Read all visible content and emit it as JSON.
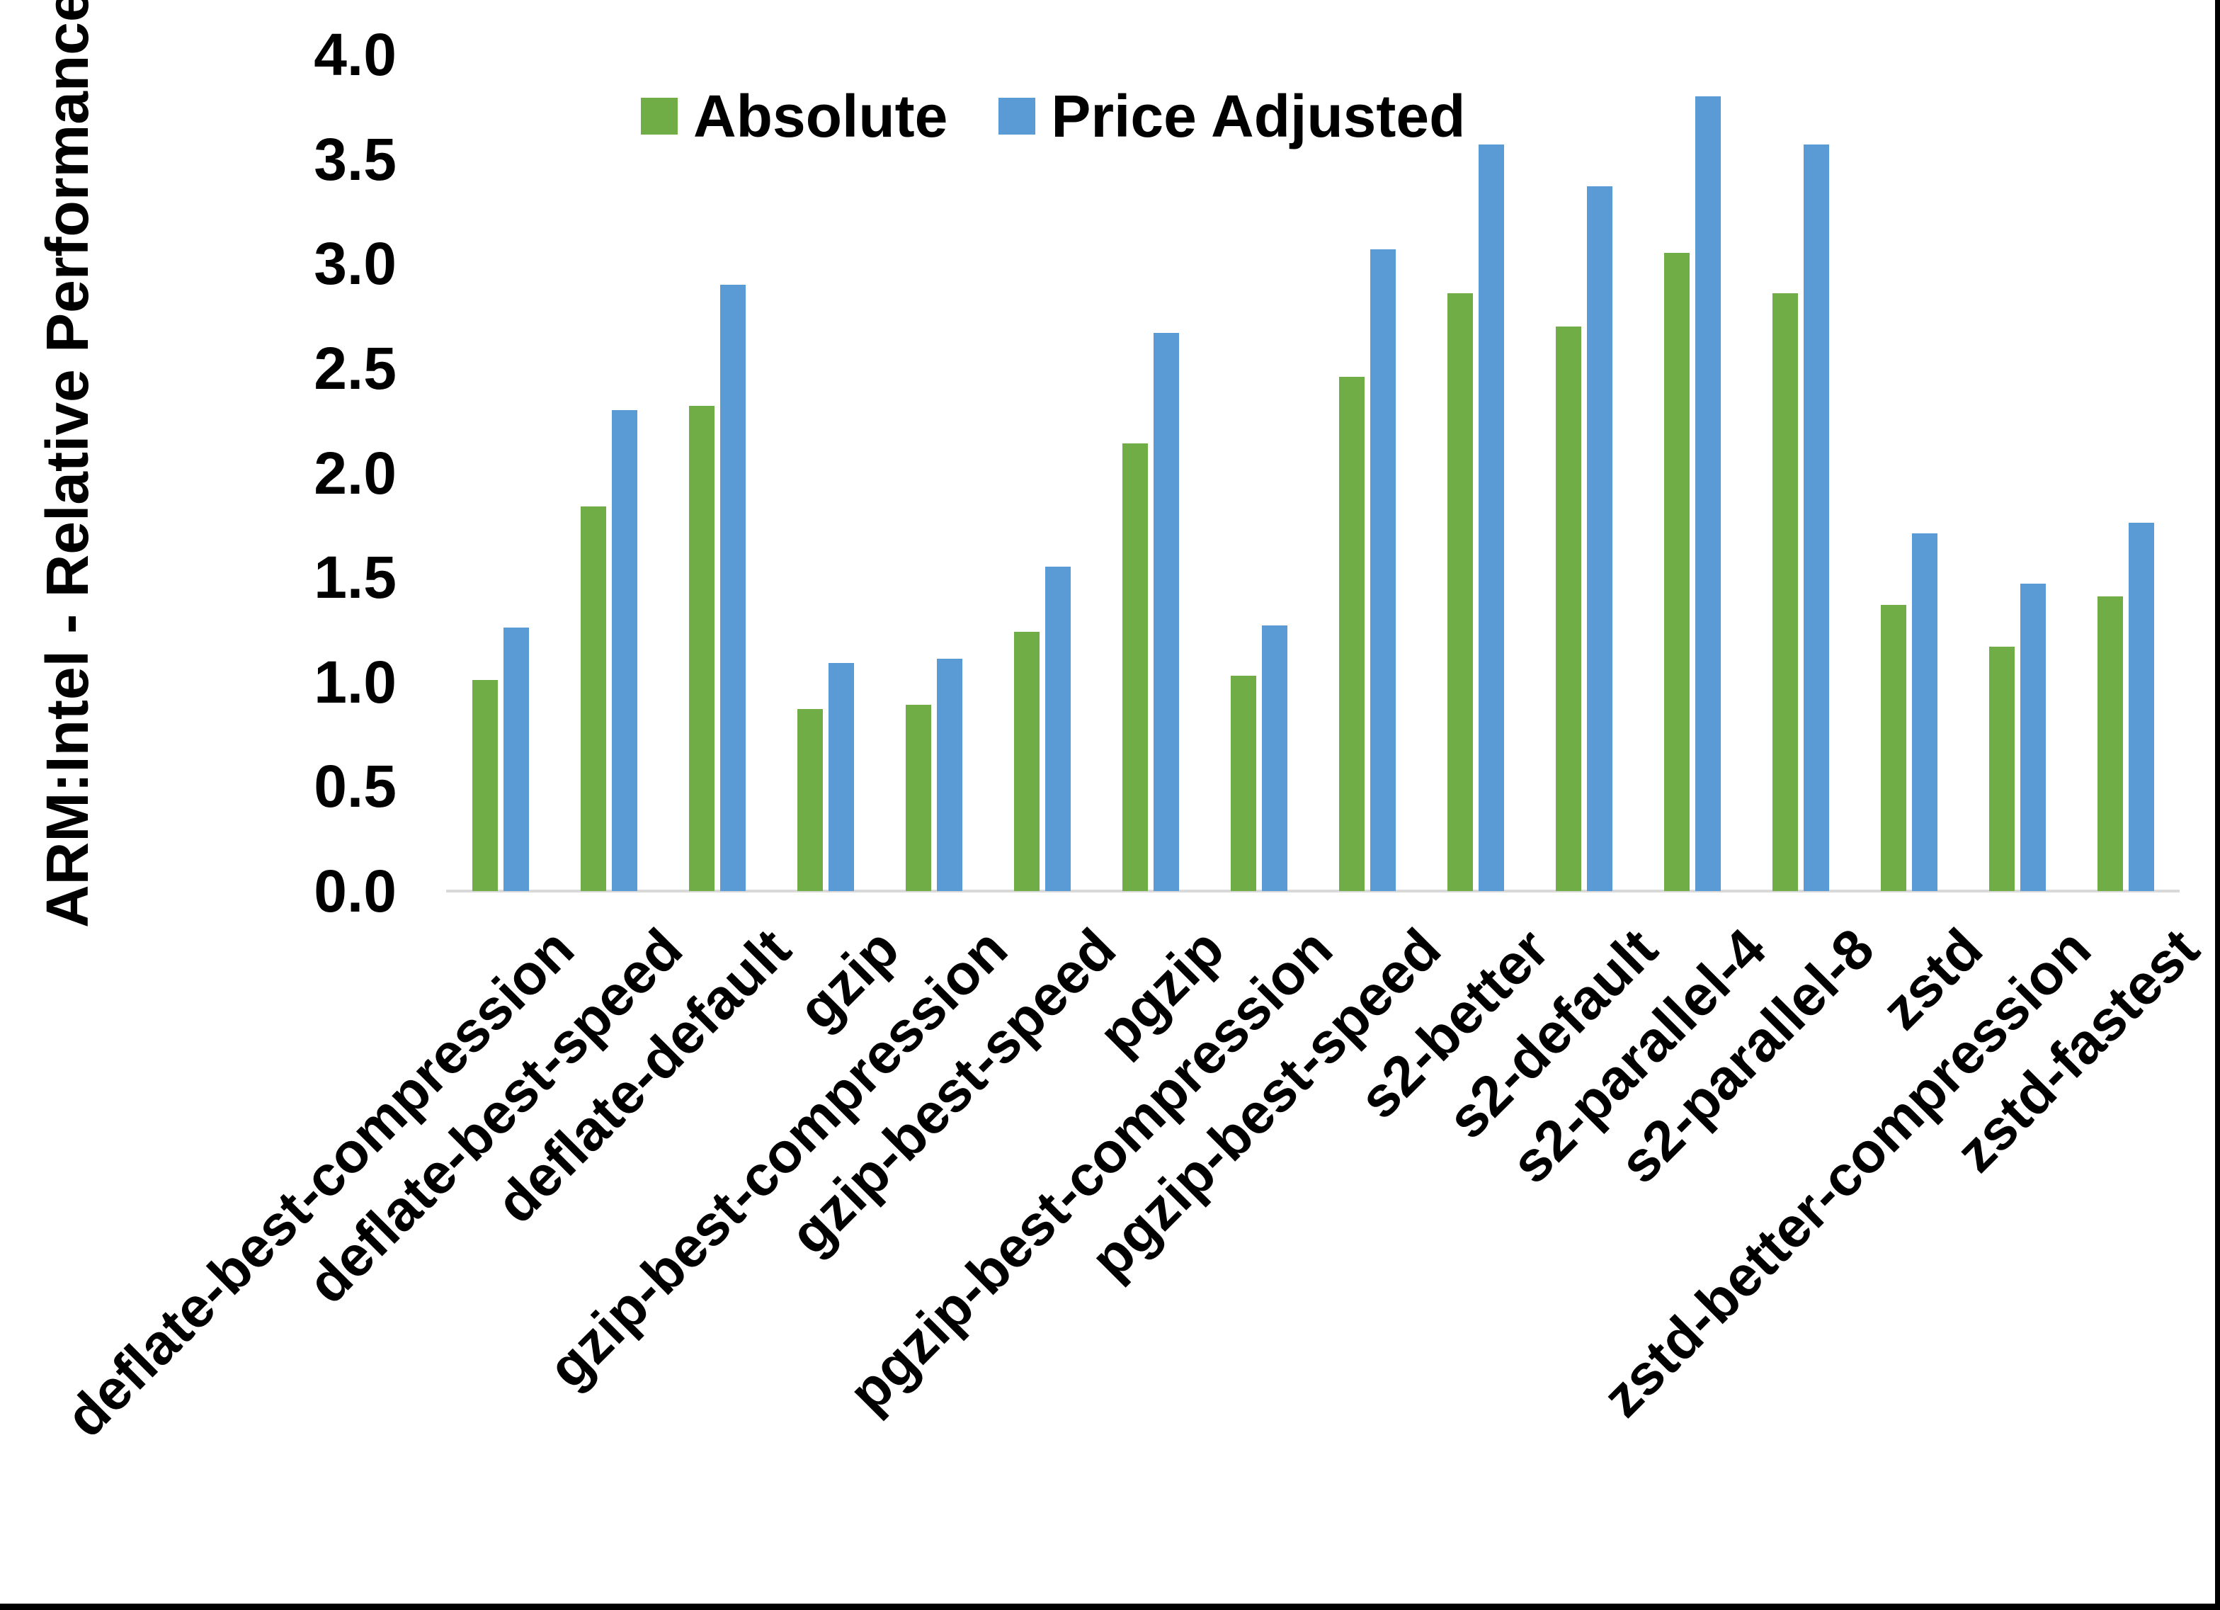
{
  "figure": {
    "y_axis_title": "ARM:Intel - Relative Performance",
    "background_color": "#ffffff",
    "axis_line_color": "#d9d9d9",
    "border_color": "#000000"
  },
  "chart_data": {
    "type": "bar",
    "title": "",
    "xlabel": "",
    "ylabel": "ARM:Intel - Relative Performance",
    "ylim": [
      0.0,
      4.0
    ],
    "ytick_step": 0.5,
    "ytick_labels": [
      "0.0",
      "0.5",
      "1.0",
      "1.5",
      "2.0",
      "2.5",
      "3.0",
      "3.5",
      "4.0"
    ],
    "grid": false,
    "legend_position": "top-center",
    "categories": [
      "deflate-best-compression",
      "deflate-best-speed",
      "deflate-default",
      "gzip",
      "gzip-best-compression",
      "gzip-best-speed",
      "pgzip",
      "pgzip-best-compression",
      "pgzip-best-speed",
      "s2-better",
      "s2-default",
      "s2-parallel-4",
      "s2-parallel-8",
      "zstd",
      "zstd-better-compression",
      "zstd-fastest"
    ],
    "series": [
      {
        "name": "Absolute",
        "color": "#70AD47",
        "values": [
          1.01,
          1.84,
          2.32,
          0.87,
          0.89,
          1.24,
          2.14,
          1.03,
          2.46,
          2.86,
          2.7,
          3.05,
          2.86,
          1.37,
          1.17,
          1.41
        ]
      },
      {
        "name": "Price Adjusted",
        "color": "#5B9BD5",
        "values": [
          1.26,
          2.3,
          2.9,
          1.09,
          1.11,
          1.55,
          2.67,
          1.27,
          3.07,
          3.57,
          3.37,
          3.8,
          3.57,
          1.71,
          1.47,
          1.76
        ]
      }
    ]
  }
}
